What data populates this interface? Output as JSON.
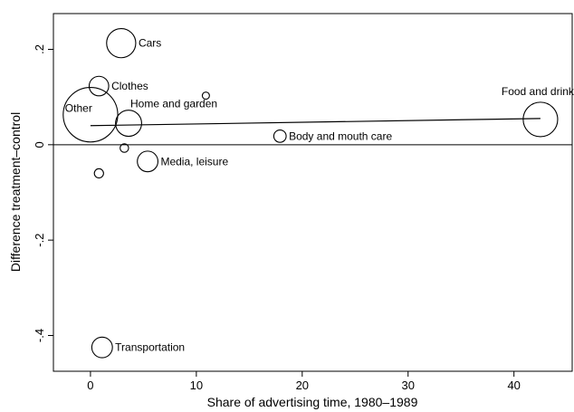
{
  "chart_data": {
    "type": "scatter",
    "xlabel": "Share of advertising time, 1980–1989",
    "ylabel": "Difference treatment–control",
    "xlim": [
      -3.5,
      45.5
    ],
    "ylim": [
      -0.475,
      0.275
    ],
    "x_ticks": [
      0,
      10,
      20,
      30,
      40
    ],
    "x_tick_labels": [
      "0",
      "10",
      "20",
      "30",
      "40"
    ],
    "y_ticks": [
      0.2,
      0,
      -0.2,
      -0.4
    ],
    "y_tick_labels": [
      ".2",
      "0",
      "-.2",
      "-.4"
    ],
    "grid": false,
    "reference_line_y": 0,
    "fit_line": {
      "x": [
        0,
        42.5
      ],
      "y": [
        0.04,
        0.055
      ]
    },
    "points": [
      {
        "label": "Cars",
        "x": 2.9,
        "y": 0.213,
        "weight": 20
      },
      {
        "label": "Clothes",
        "x": 0.8,
        "y": 0.123,
        "weight": 9
      },
      {
        "label": "",
        "x": 10.9,
        "y": 0.103,
        "weight": 1.2
      },
      {
        "label": "Food and drinks",
        "x": 42.5,
        "y": 0.053,
        "weight": 28
      },
      {
        "label": "Other",
        "x": 0.0,
        "y": 0.063,
        "weight": 70
      },
      {
        "label": "Home and garden",
        "x": 3.6,
        "y": 0.045,
        "weight": 16
      },
      {
        "label": "Body and mouth care",
        "x": 17.9,
        "y": 0.018,
        "weight": 3.6
      },
      {
        "label": "",
        "x": 3.2,
        "y": -0.007,
        "weight": 1.7
      },
      {
        "label": "Media, leisure",
        "x": 5.4,
        "y": -0.035,
        "weight": 10
      },
      {
        "label": "",
        "x": 0.8,
        "y": -0.06,
        "weight": 2
      },
      {
        "label": "Transportation",
        "x": 1.1,
        "y": -0.425,
        "weight": 10
      }
    ]
  }
}
